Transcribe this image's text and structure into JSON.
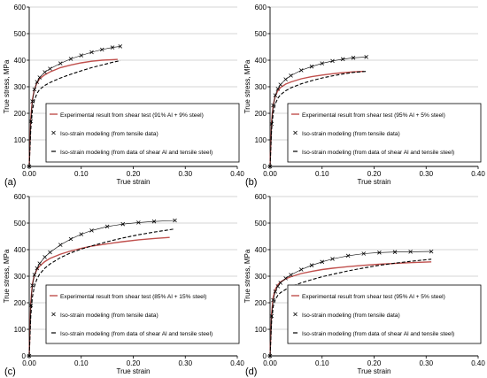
{
  "chart_data": [
    {
      "panel": "(a)",
      "type": "line",
      "xlabel": "True strain",
      "ylabel": "True stress, MPa",
      "xlim": [
        0,
        0.4
      ],
      "ylim": [
        0,
        600
      ],
      "xticks": [
        "0.00",
        "0.10",
        "0.20",
        "0.30",
        "0.40"
      ],
      "yticks": [
        "0",
        "100",
        "200",
        "300",
        "400",
        "500",
        "600"
      ],
      "grid": "horizontal",
      "legend_loc": "lower-right",
      "series": [
        {
          "name": "Experimental result from shear test (91% Al + 9% steel)",
          "style": "line",
          "color": "#c0504d",
          "x": [
            0,
            0.003,
            0.006,
            0.01,
            0.015,
            0.02,
            0.03,
            0.04,
            0.06,
            0.08,
            0.1,
            0.12,
            0.14,
            0.16,
            0.17
          ],
          "y": [
            0,
            180,
            250,
            290,
            315,
            330,
            345,
            356,
            372,
            382,
            390,
            396,
            400,
            402,
            403
          ]
        },
        {
          "name": "Iso-strain modeling (from tensile data)",
          "style": "x",
          "color": "#000000",
          "x": [
            0,
            0.003,
            0.006,
            0.01,
            0.015,
            0.02,
            0.03,
            0.04,
            0.06,
            0.08,
            0.1,
            0.12,
            0.14,
            0.16,
            0.175
          ],
          "y": [
            0,
            170,
            245,
            290,
            318,
            335,
            355,
            368,
            388,
            405,
            418,
            430,
            440,
            448,
            452
          ]
        },
        {
          "name": "Iso-strain modeling (from data of shear Al and tensile steel)",
          "style": "dash",
          "color": "#000000",
          "x": [
            0,
            0.003,
            0.006,
            0.01,
            0.015,
            0.02,
            0.03,
            0.04,
            0.06,
            0.08,
            0.1,
            0.12,
            0.14,
            0.16,
            0.175
          ],
          "y": [
            0,
            140,
            210,
            250,
            275,
            290,
            305,
            316,
            333,
            347,
            360,
            372,
            382,
            392,
            398
          ]
        }
      ]
    },
    {
      "panel": "(b)",
      "type": "line",
      "xlabel": "True strain",
      "ylabel": "True stress, MPa",
      "xlim": [
        0,
        0.4
      ],
      "ylim": [
        0,
        600
      ],
      "xticks": [
        "0.00",
        "0.10",
        "0.20",
        "0.30",
        "0.40"
      ],
      "yticks": [
        "0",
        "100",
        "200",
        "300",
        "400",
        "500",
        "600"
      ],
      "grid": "horizontal",
      "legend_loc": "lower-right",
      "series": [
        {
          "name": "Experimental result from shear test (95% Al + 5% steel)",
          "style": "line",
          "color": "#c0504d",
          "x": [
            0,
            0.003,
            0.006,
            0.01,
            0.015,
            0.02,
            0.03,
            0.04,
            0.06,
            0.08,
            0.1,
            0.12,
            0.14,
            0.16,
            0.18
          ],
          "y": [
            0,
            170,
            230,
            265,
            285,
            297,
            310,
            318,
            330,
            338,
            344,
            349,
            353,
            356,
            358
          ]
        },
        {
          "name": "Iso-strain modeling (from tensile data)",
          "style": "x",
          "color": "#000000",
          "x": [
            0,
            0.003,
            0.006,
            0.01,
            0.015,
            0.02,
            0.03,
            0.04,
            0.06,
            0.08,
            0.1,
            0.12,
            0.14,
            0.16,
            0.185
          ],
          "y": [
            0,
            160,
            230,
            268,
            292,
            308,
            328,
            342,
            362,
            376,
            388,
            397,
            404,
            409,
            412
          ]
        },
        {
          "name": "Iso-strain modeling (from data of shear Al and tensile steel)",
          "style": "dash",
          "color": "#000000",
          "x": [
            0,
            0.003,
            0.006,
            0.01,
            0.015,
            0.02,
            0.03,
            0.04,
            0.06,
            0.08,
            0.1,
            0.12,
            0.14,
            0.16,
            0.185
          ],
          "y": [
            0,
            140,
            200,
            235,
            257,
            270,
            285,
            296,
            311,
            323,
            333,
            341,
            348,
            354,
            358
          ]
        }
      ]
    },
    {
      "panel": "(c)",
      "type": "line",
      "xlabel": "True strain",
      "ylabel": "True stress, MPa",
      "xlim": [
        0,
        0.4
      ],
      "ylim": [
        0,
        600
      ],
      "xticks": [
        "0.00",
        "0.10",
        "0.20",
        "0.30",
        "0.40"
      ],
      "yticks": [
        "0",
        "100",
        "200",
        "300",
        "400",
        "500",
        "600"
      ],
      "grid": "horizontal",
      "legend_loc": "lower-right",
      "series": [
        {
          "name": "Experimental result from shear test (85% Al + 15% steel)",
          "style": "line",
          "color": "#c0504d",
          "x": [
            0,
            0.003,
            0.006,
            0.01,
            0.015,
            0.02,
            0.03,
            0.04,
            0.06,
            0.08,
            0.1,
            0.12,
            0.15,
            0.18,
            0.21,
            0.24,
            0.27
          ],
          "y": [
            0,
            200,
            270,
            305,
            325,
            338,
            355,
            367,
            383,
            395,
            405,
            413,
            422,
            430,
            437,
            442,
            446
          ]
        },
        {
          "name": "Iso-strain modeling (from tensile data)",
          "style": "x",
          "color": "#000000",
          "x": [
            0,
            0.003,
            0.006,
            0.01,
            0.015,
            0.02,
            0.03,
            0.04,
            0.06,
            0.08,
            0.1,
            0.12,
            0.15,
            0.18,
            0.21,
            0.24,
            0.28
          ],
          "y": [
            0,
            190,
            265,
            305,
            330,
            348,
            372,
            390,
            418,
            440,
            458,
            472,
            487,
            496,
            502,
            506,
            510
          ]
        },
        {
          "name": "Iso-strain modeling (from data of shear Al and tensile steel)",
          "style": "dash",
          "color": "#000000",
          "x": [
            0,
            0.003,
            0.006,
            0.01,
            0.015,
            0.02,
            0.03,
            0.04,
            0.06,
            0.08,
            0.1,
            0.12,
            0.15,
            0.18,
            0.21,
            0.24,
            0.28
          ],
          "y": [
            0,
            150,
            220,
            262,
            290,
            308,
            330,
            346,
            370,
            388,
            402,
            414,
            430,
            444,
            456,
            466,
            478
          ]
        }
      ]
    },
    {
      "panel": "(d)",
      "type": "line",
      "xlabel": "True strain",
      "ylabel": "True stress, MPa",
      "xlim": [
        0,
        0.4
      ],
      "ylim": [
        0,
        600
      ],
      "xticks": [
        "0.00",
        "0.10",
        "0.20",
        "0.30",
        "0.40"
      ],
      "yticks": [
        "0",
        "100",
        "200",
        "300",
        "400",
        "500",
        "600"
      ],
      "grid": "horizontal",
      "legend_loc": "lower-right",
      "series": [
        {
          "name": "Experimental result from shear test (95% Al + 5% steel)",
          "style": "line",
          "color": "#c0504d",
          "x": [
            0,
            0.003,
            0.006,
            0.01,
            0.015,
            0.02,
            0.03,
            0.04,
            0.06,
            0.08,
            0.1,
            0.12,
            0.15,
            0.18,
            0.21,
            0.24,
            0.27,
            0.31
          ],
          "y": [
            0,
            160,
            220,
            250,
            268,
            278,
            290,
            298,
            310,
            318,
            325,
            330,
            336,
            341,
            345,
            348,
            351,
            354
          ]
        },
        {
          "name": "Iso-strain modeling (from tensile data)",
          "style": "x",
          "color": "#000000",
          "x": [
            0,
            0.003,
            0.006,
            0.01,
            0.015,
            0.02,
            0.03,
            0.04,
            0.06,
            0.08,
            0.1,
            0.12,
            0.15,
            0.18,
            0.21,
            0.24,
            0.27,
            0.31
          ],
          "y": [
            0,
            150,
            210,
            242,
            262,
            275,
            292,
            305,
            325,
            341,
            354,
            365,
            377,
            385,
            389,
            391,
            392,
            393
          ]
        },
        {
          "name": "Iso-strain modeling (from data of shear Al and tensile steel)",
          "style": "dash",
          "color": "#000000",
          "x": [
            0,
            0.003,
            0.006,
            0.01,
            0.015,
            0.02,
            0.03,
            0.04,
            0.06,
            0.08,
            0.1,
            0.12,
            0.15,
            0.18,
            0.21,
            0.24,
            0.27,
            0.31
          ],
          "y": [
            0,
            130,
            185,
            212,
            228,
            238,
            250,
            260,
            275,
            287,
            298,
            307,
            320,
            331,
            341,
            349,
            356,
            364
          ]
        }
      ]
    }
  ]
}
